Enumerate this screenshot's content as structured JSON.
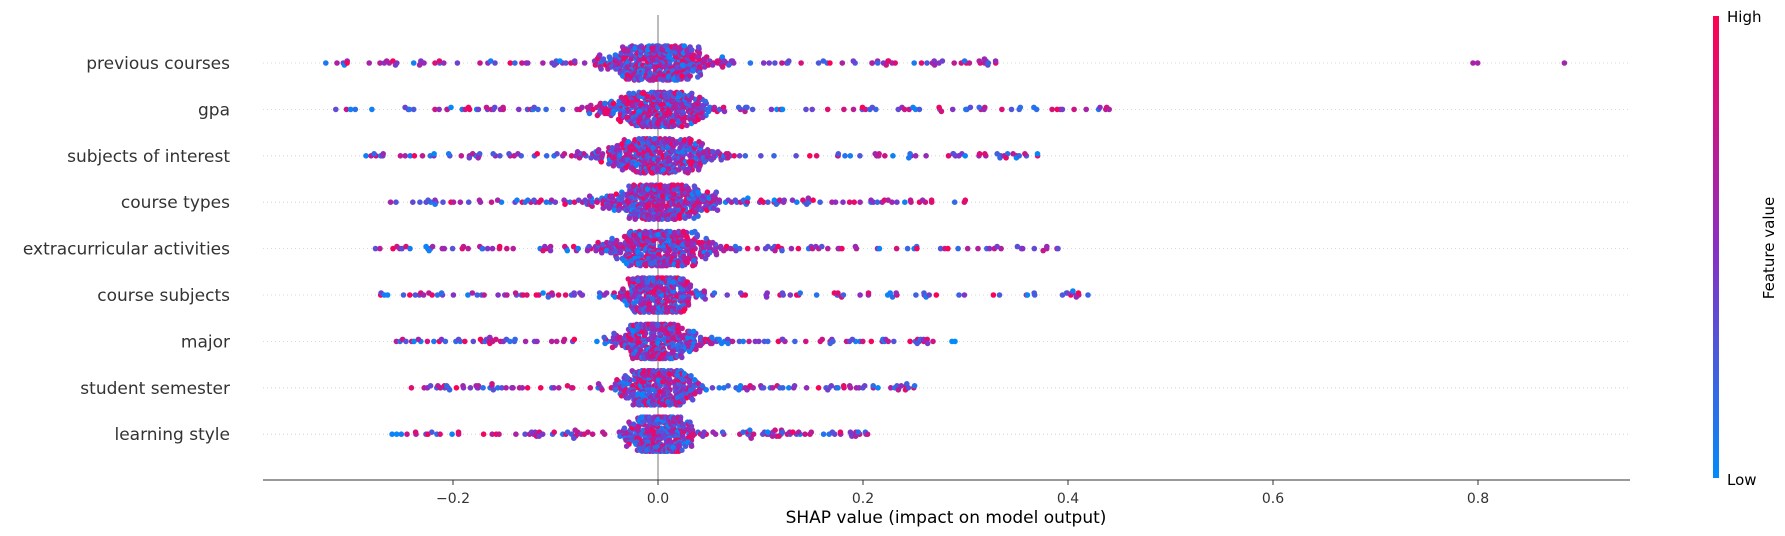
{
  "chart_data": {
    "type": "scatter",
    "subtype": "shap-beeswarm",
    "xlabel": "SHAP value (impact on model output)",
    "x_ticks": [
      -0.2,
      0.0,
      0.2,
      0.4,
      0.6,
      0.8
    ],
    "x_tick_labels": [
      "−0.2",
      "0.0",
      "0.2",
      "0.4",
      "0.6",
      "0.8"
    ],
    "xlim": [
      -0.385,
      0.95
    ],
    "features": [
      {
        "name": "previous courses",
        "min": -0.325,
        "max": 0.33,
        "spread": 0.06,
        "outliers": [
          0.795,
          0.8,
          0.885
        ]
      },
      {
        "name": "gpa",
        "min": -0.315,
        "max": 0.44,
        "spread": 0.06,
        "outliers": []
      },
      {
        "name": "subjects of interest",
        "min": -0.285,
        "max": 0.37,
        "spread": 0.06,
        "outliers": []
      },
      {
        "name": "course types",
        "min": -0.26,
        "max": 0.3,
        "spread": 0.06,
        "outliers": []
      },
      {
        "name": "extracurricular activities",
        "min": -0.275,
        "max": 0.39,
        "spread": 0.06,
        "outliers": []
      },
      {
        "name": "course subjects",
        "min": -0.27,
        "max": 0.42,
        "spread": 0.04,
        "outliers": []
      },
      {
        "name": "major",
        "min": -0.255,
        "max": 0.29,
        "spread": 0.04,
        "outliers": []
      },
      {
        "name": "student semester",
        "min": -0.24,
        "max": 0.25,
        "spread": 0.04,
        "outliers": []
      },
      {
        "name": "learning style",
        "min": -0.26,
        "max": 0.205,
        "spread": 0.035,
        "outliers": []
      }
    ],
    "colorbar": {
      "title": "Feature value",
      "high_label": "High",
      "low_label": "Low",
      "high_color": "#ff0052",
      "mid_color": "#8a2fc4",
      "low_color": "#008bfb"
    }
  }
}
